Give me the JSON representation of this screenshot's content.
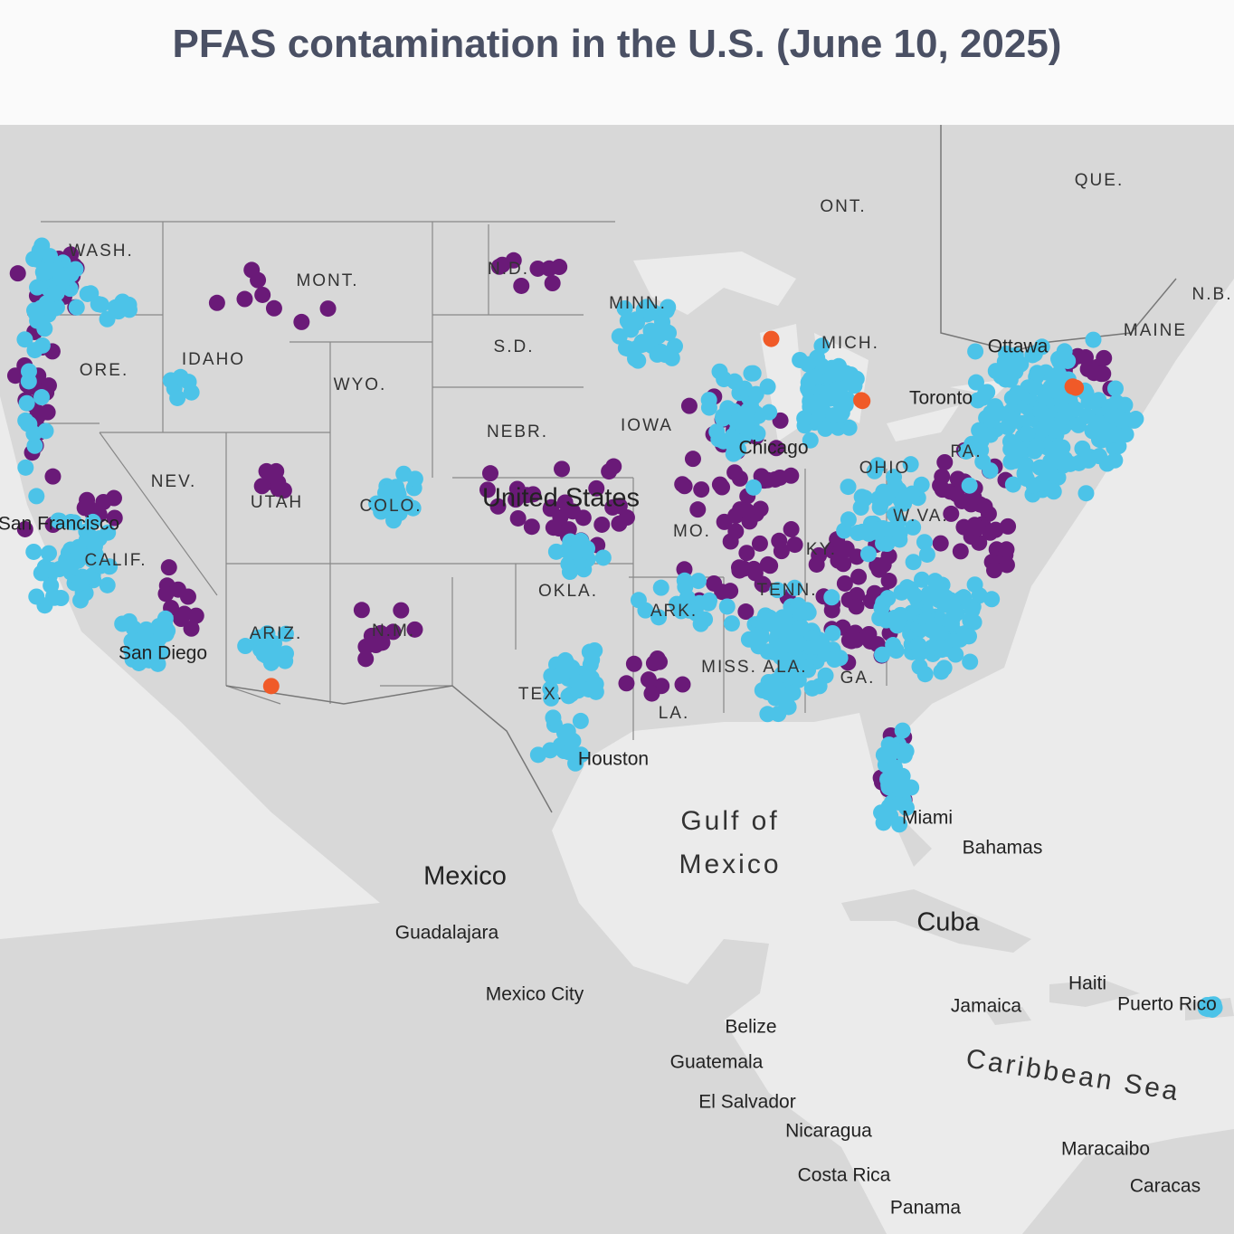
{
  "header": {
    "title": "PFAS contamination in the U.S. (June 10, 2025)"
  },
  "map": {
    "countries": [
      "United States",
      "Mexico",
      "Cuba"
    ],
    "states": [
      "WASH.",
      "MONT.",
      "N.D.",
      "MINN.",
      "S.D.",
      "WYO.",
      "IDAHO",
      "ORE.",
      "NEBR.",
      "IOWA",
      "NEV.",
      "UTAH",
      "COLO.",
      "CALIF.",
      "ARIZ.",
      "N.M.",
      "OKLA.",
      "ARK.",
      "TEX.",
      "LA.",
      "MISS.",
      "ALA.",
      "GA.",
      "KY.",
      "TENN.",
      "W.VA.",
      "PA.",
      "OHIO",
      "MICH.",
      "MO.",
      "MAINE",
      "N.B.",
      "QUE.",
      "ONT."
    ],
    "cities": [
      "San Francisco",
      "San Diego",
      "Chicago",
      "Houston",
      "Miami",
      "Toronto",
      "Ottawa",
      "Guadalajara",
      "Mexico City",
      "Bahamas",
      "Jamaica",
      "Haiti",
      "Belize",
      "Guatemala",
      "El Salvador",
      "Nicaragua",
      "Costa Rica",
      "Panama",
      "Maracaibo",
      "Caracas",
      "Puerto Rico"
    ],
    "water": [
      "Gulf of",
      "Mexico",
      "Caribbean Sea"
    ]
  }
}
